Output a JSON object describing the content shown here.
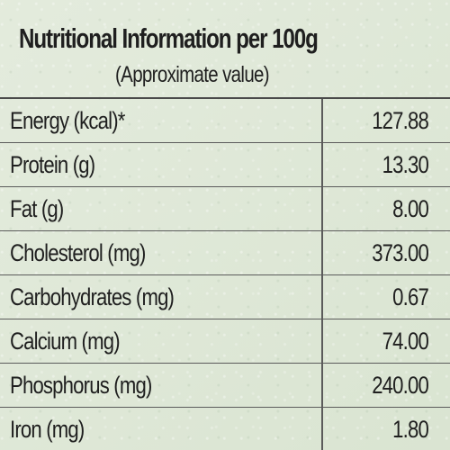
{
  "header": {
    "title": "Nutritional Information per 100g",
    "subtitle": "(Approximate value)"
  },
  "nutrients": [
    {
      "label": "Energy (kcal)*",
      "value": "127.88"
    },
    {
      "label": "Protein (g)",
      "value": "13.30"
    },
    {
      "label": "Fat (g)",
      "value": "8.00"
    },
    {
      "label": "Cholesterol (mg)",
      "value": "373.00"
    },
    {
      "label": "Carbohydrates (mg)",
      "value": "0.67"
    },
    {
      "label": "Calcium (mg)",
      "value": "74.00"
    },
    {
      "label": "Phosphorus (mg)",
      "value": "240.00"
    },
    {
      "label": "Iron (mg)",
      "value": "1.80"
    }
  ]
}
